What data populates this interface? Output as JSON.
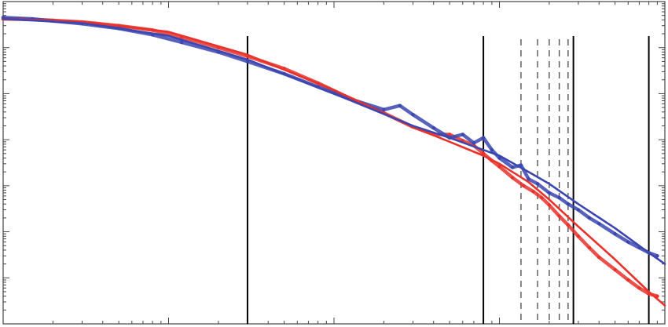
{
  "chart_data": {
    "type": "line",
    "title": "",
    "xlabel": "",
    "ylabel": "",
    "x_scale": "log",
    "y_scale": "log",
    "xlim": [
      0.001,
      10
    ],
    "ylim": [
      1e-07,
      1
    ],
    "grid": false,
    "legend": "none",
    "colors": {
      "red": "#e8322b",
      "blue": "#3b46b0",
      "guide": "#000000"
    },
    "vertical_lines_solid": [
      0.03,
      0.8,
      2.8,
      8
    ],
    "vertical_lines_dashed": [
      1.35,
      1.7,
      2.0,
      2.3,
      2.6
    ],
    "series": [
      {
        "color": "red",
        "style": "data",
        "x": [
          0.001,
          0.0015,
          0.002,
          0.003,
          0.005,
          0.008,
          0.012,
          0.02,
          0.03,
          0.05,
          0.08,
          0.12,
          0.2,
          0.3,
          0.4,
          0.5,
          0.6,
          0.7,
          0.8,
          0.9,
          1.0,
          1.2,
          1.4,
          1.6,
          1.8,
          2.0,
          2.3,
          2.6,
          3.0,
          3.5,
          4.0,
          5.0,
          6.0,
          7.0,
          8.0,
          9.0
        ],
        "y": [
          0.42,
          0.41,
          0.39,
          0.36,
          0.3,
          0.24,
          0.17,
          0.1,
          0.065,
          0.035,
          0.017,
          0.0085,
          0.0038,
          0.0019,
          0.0013,
          0.0013,
          0.00095,
          0.00075,
          0.0005,
          0.00035,
          0.00026,
          0.00015,
          0.0001,
          7.5e-05,
          5.5e-05,
          3.8e-05,
          2.2e-05,
          1.4e-05,
          8e-06,
          4.5e-06,
          2.8e-06,
          1.5e-06,
          9e-07,
          6e-07,
          4.5e-07,
          4e-07
        ]
      },
      {
        "color": "blue",
        "style": "data",
        "x": [
          0.001,
          0.0015,
          0.002,
          0.003,
          0.005,
          0.008,
          0.012,
          0.02,
          0.03,
          0.05,
          0.08,
          0.12,
          0.2,
          0.25,
          0.3,
          0.4,
          0.5,
          0.6,
          0.7,
          0.8,
          0.9,
          1.0,
          1.2,
          1.35,
          1.5,
          1.7,
          2.0,
          2.3,
          2.6,
          3.0,
          3.5,
          4.0,
          5.0,
          6.0,
          7.0,
          8.0,
          9.0
        ],
        "y": [
          0.45,
          0.42,
          0.38,
          0.33,
          0.26,
          0.19,
          0.13,
          0.08,
          0.05,
          0.027,
          0.014,
          0.008,
          0.0045,
          0.0055,
          0.0035,
          0.0018,
          0.0011,
          0.0013,
          0.00085,
          0.0011,
          0.0006,
          0.0004,
          0.00025,
          0.00028,
          0.00014,
          0.00011,
          7e-05,
          5.5e-05,
          4e-05,
          3e-05,
          2e-05,
          1.5e-05,
          9e-06,
          6e-06,
          4.5e-06,
          3.5e-06,
          3e-06
        ]
      },
      {
        "color": "red",
        "style": "fit",
        "x": [
          0.001,
          0.003,
          0.01,
          0.03,
          0.1,
          0.3,
          0.5,
          0.8,
          1.0,
          1.5,
          2.0,
          3.0,
          5.0,
          8.0,
          10.0
        ],
        "y": [
          0.42,
          0.37,
          0.22,
          0.07,
          0.012,
          0.0019,
          0.0009,
          0.00045,
          0.0003,
          0.00012,
          5e-05,
          1.3e-05,
          2.5e-06,
          5e-07,
          2.5e-07
        ]
      },
      {
        "color": "blue",
        "style": "fit",
        "x": [
          0.001,
          0.003,
          0.01,
          0.03,
          0.1,
          0.3,
          0.5,
          0.8,
          1.0,
          1.5,
          2.0,
          3.0,
          5.0,
          8.0,
          10.0
        ],
        "y": [
          0.42,
          0.34,
          0.18,
          0.055,
          0.01,
          0.002,
          0.0011,
          0.0006,
          0.00045,
          0.0002,
          0.00011,
          4e-05,
          1.2e-05,
          3.5e-06,
          2e-06
        ]
      }
    ]
  }
}
